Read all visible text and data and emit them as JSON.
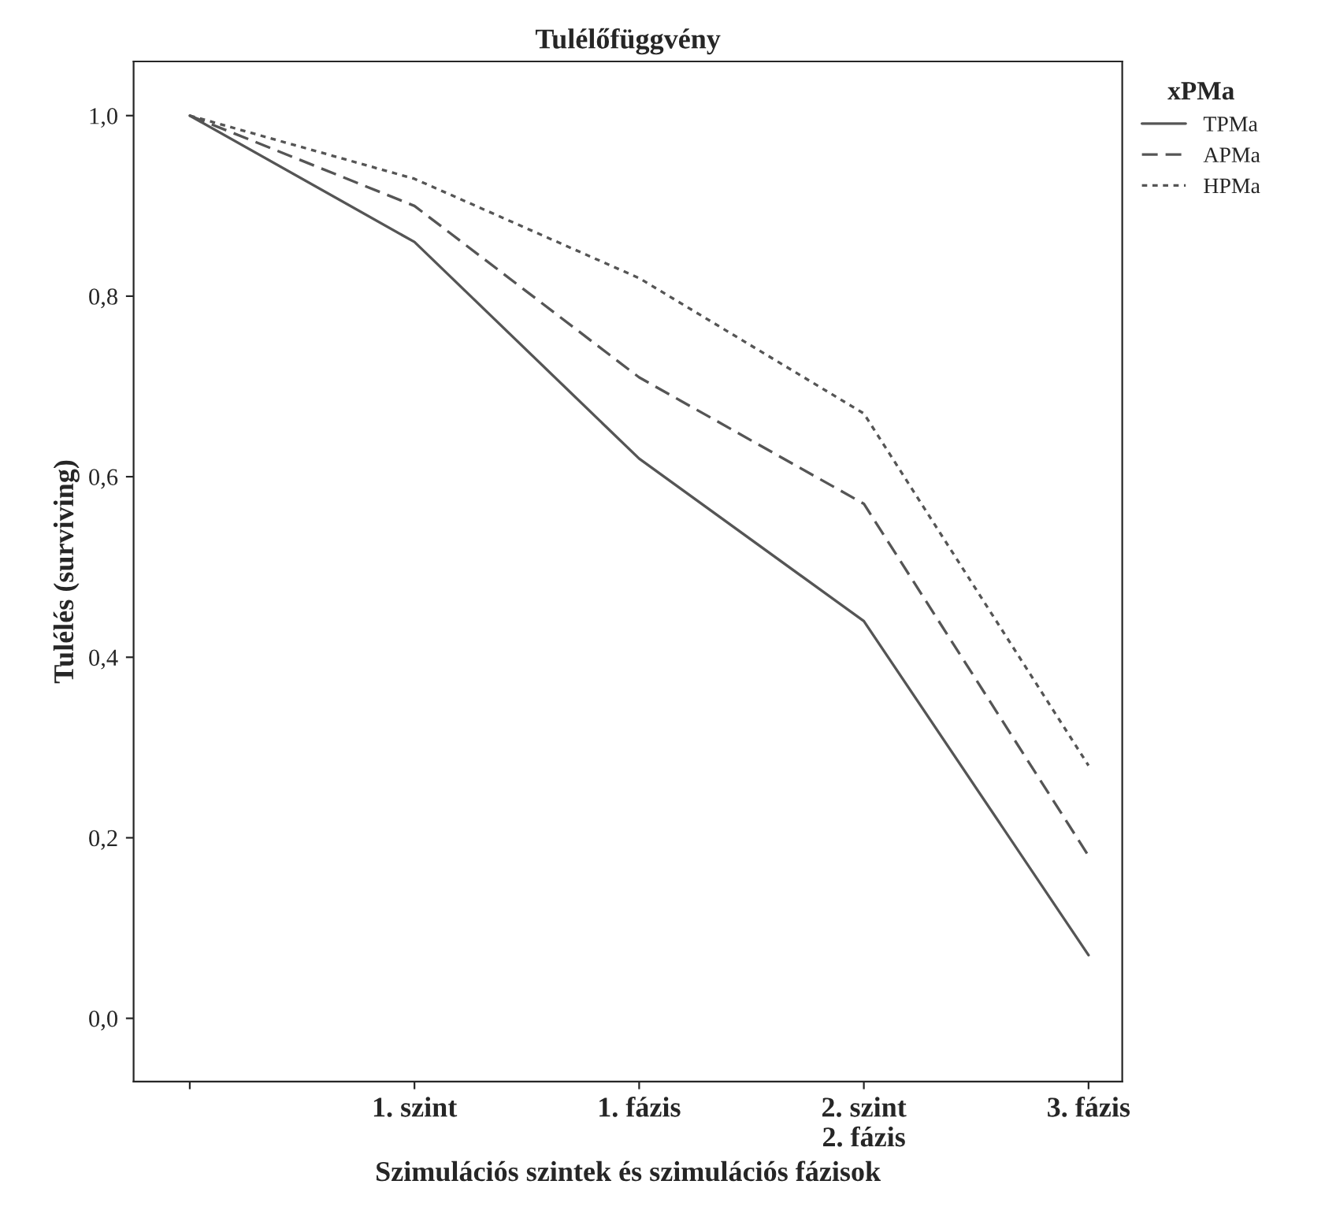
{
  "chart_data": {
    "type": "line",
    "title": "Tulélőfüggvény",
    "xlabel": "Szimulációs szintek és szimulációs fázisok",
    "ylabel": "Tulélés (surviving)",
    "legend_title": "xPMa",
    "legend": "top right",
    "categories": [
      null,
      "1. szint",
      "1. fázis",
      "2. szint\n2. fázis",
      "3. fázis"
    ],
    "series": [
      {
        "name": "TPMa",
        "color": "#555555",
        "line_style": "solid",
        "values": [
          1.0,
          0.86,
          0.62,
          0.44,
          0.07
        ]
      },
      {
        "name": "APMa",
        "color": "#555555",
        "line_style": "dashed",
        "values": [
          1.0,
          0.9,
          0.71,
          0.57,
          0.18
        ]
      },
      {
        "name": "HPMa",
        "color": "#555555",
        "line_style": "dotted",
        "values": [
          1.0,
          0.93,
          0.82,
          0.67,
          0.28
        ]
      }
    ],
    "ylim": [
      -0.07,
      1.06
    ],
    "yticks": [
      {
        "value": 0,
        "label": "0,0"
      },
      {
        "value": 0.2,
        "label": "0,2"
      },
      {
        "value": 0.4,
        "label": "0,4"
      },
      {
        "value": 0.6,
        "label": "0,6"
      },
      {
        "value": 0.8,
        "label": "0,8"
      },
      {
        "value": 1.0,
        "label": "1,0"
      }
    ],
    "grid": false
  }
}
